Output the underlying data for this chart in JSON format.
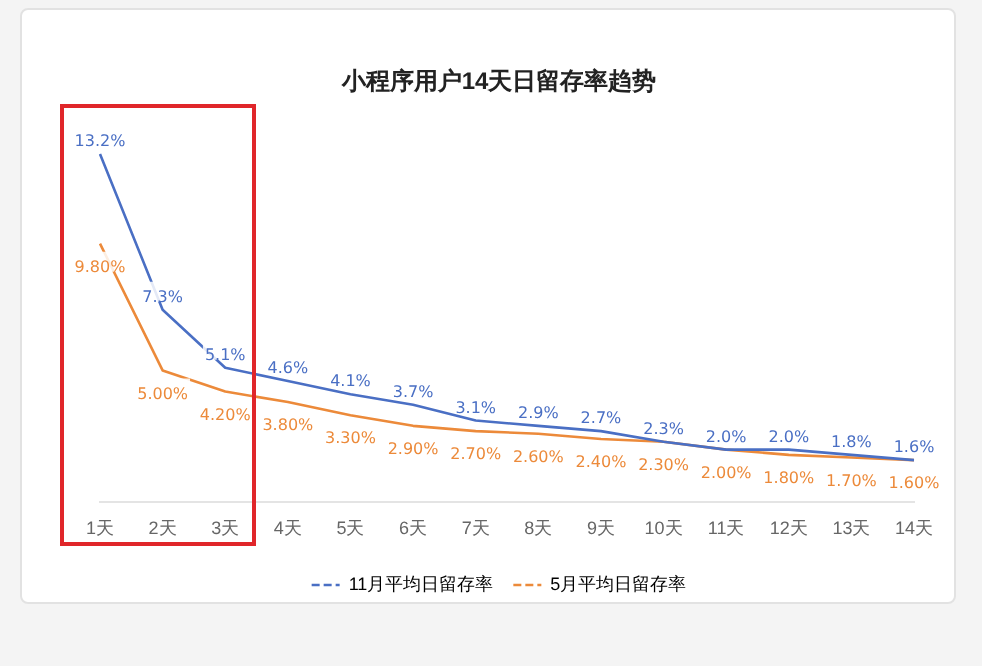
{
  "chart_data": {
    "type": "line",
    "title": "小程序用户14天日留存率趋势",
    "categories": [
      "1天",
      "2天",
      "3天",
      "4天",
      "5天",
      "6天",
      "7天",
      "8天",
      "9天",
      "10天",
      "11天",
      "12天",
      "13天",
      "14天"
    ],
    "series": [
      {
        "name": "11月平均日留存率",
        "color": "#4a6fc4",
        "values": [
          13.2,
          7.3,
          5.1,
          4.6,
          4.1,
          3.7,
          3.1,
          2.9,
          2.7,
          2.3,
          2.0,
          2.0,
          1.8,
          1.6
        ],
        "value_labels": [
          "13.2%",
          "7.3%",
          "5.1%",
          "4.6%",
          "4.1%",
          "3.7%",
          "3.1%",
          "2.9%",
          "2.7%",
          "2.3%",
          "2.0%",
          "2.0%",
          "1.8%",
          "1.6%"
        ]
      },
      {
        "name": "5月平均日留存率",
        "color": "#ec8a3a",
        "values": [
          9.8,
          5.0,
          4.2,
          3.8,
          3.3,
          2.9,
          2.7,
          2.6,
          2.4,
          2.3,
          2.0,
          1.8,
          1.7,
          1.6
        ],
        "value_labels": [
          "9.80%",
          "5.00%",
          "4.20%",
          "3.80%",
          "3.30%",
          "2.90%",
          "2.70%",
          "2.60%",
          "2.40%",
          "2.30%",
          "2.00%",
          "1.80%",
          "1.70%",
          "1.60%"
        ]
      }
    ],
    "relative": false,
    "legend": "bottom",
    "marker": "none",
    "line_style": "solid",
    "grid": false
  }
}
